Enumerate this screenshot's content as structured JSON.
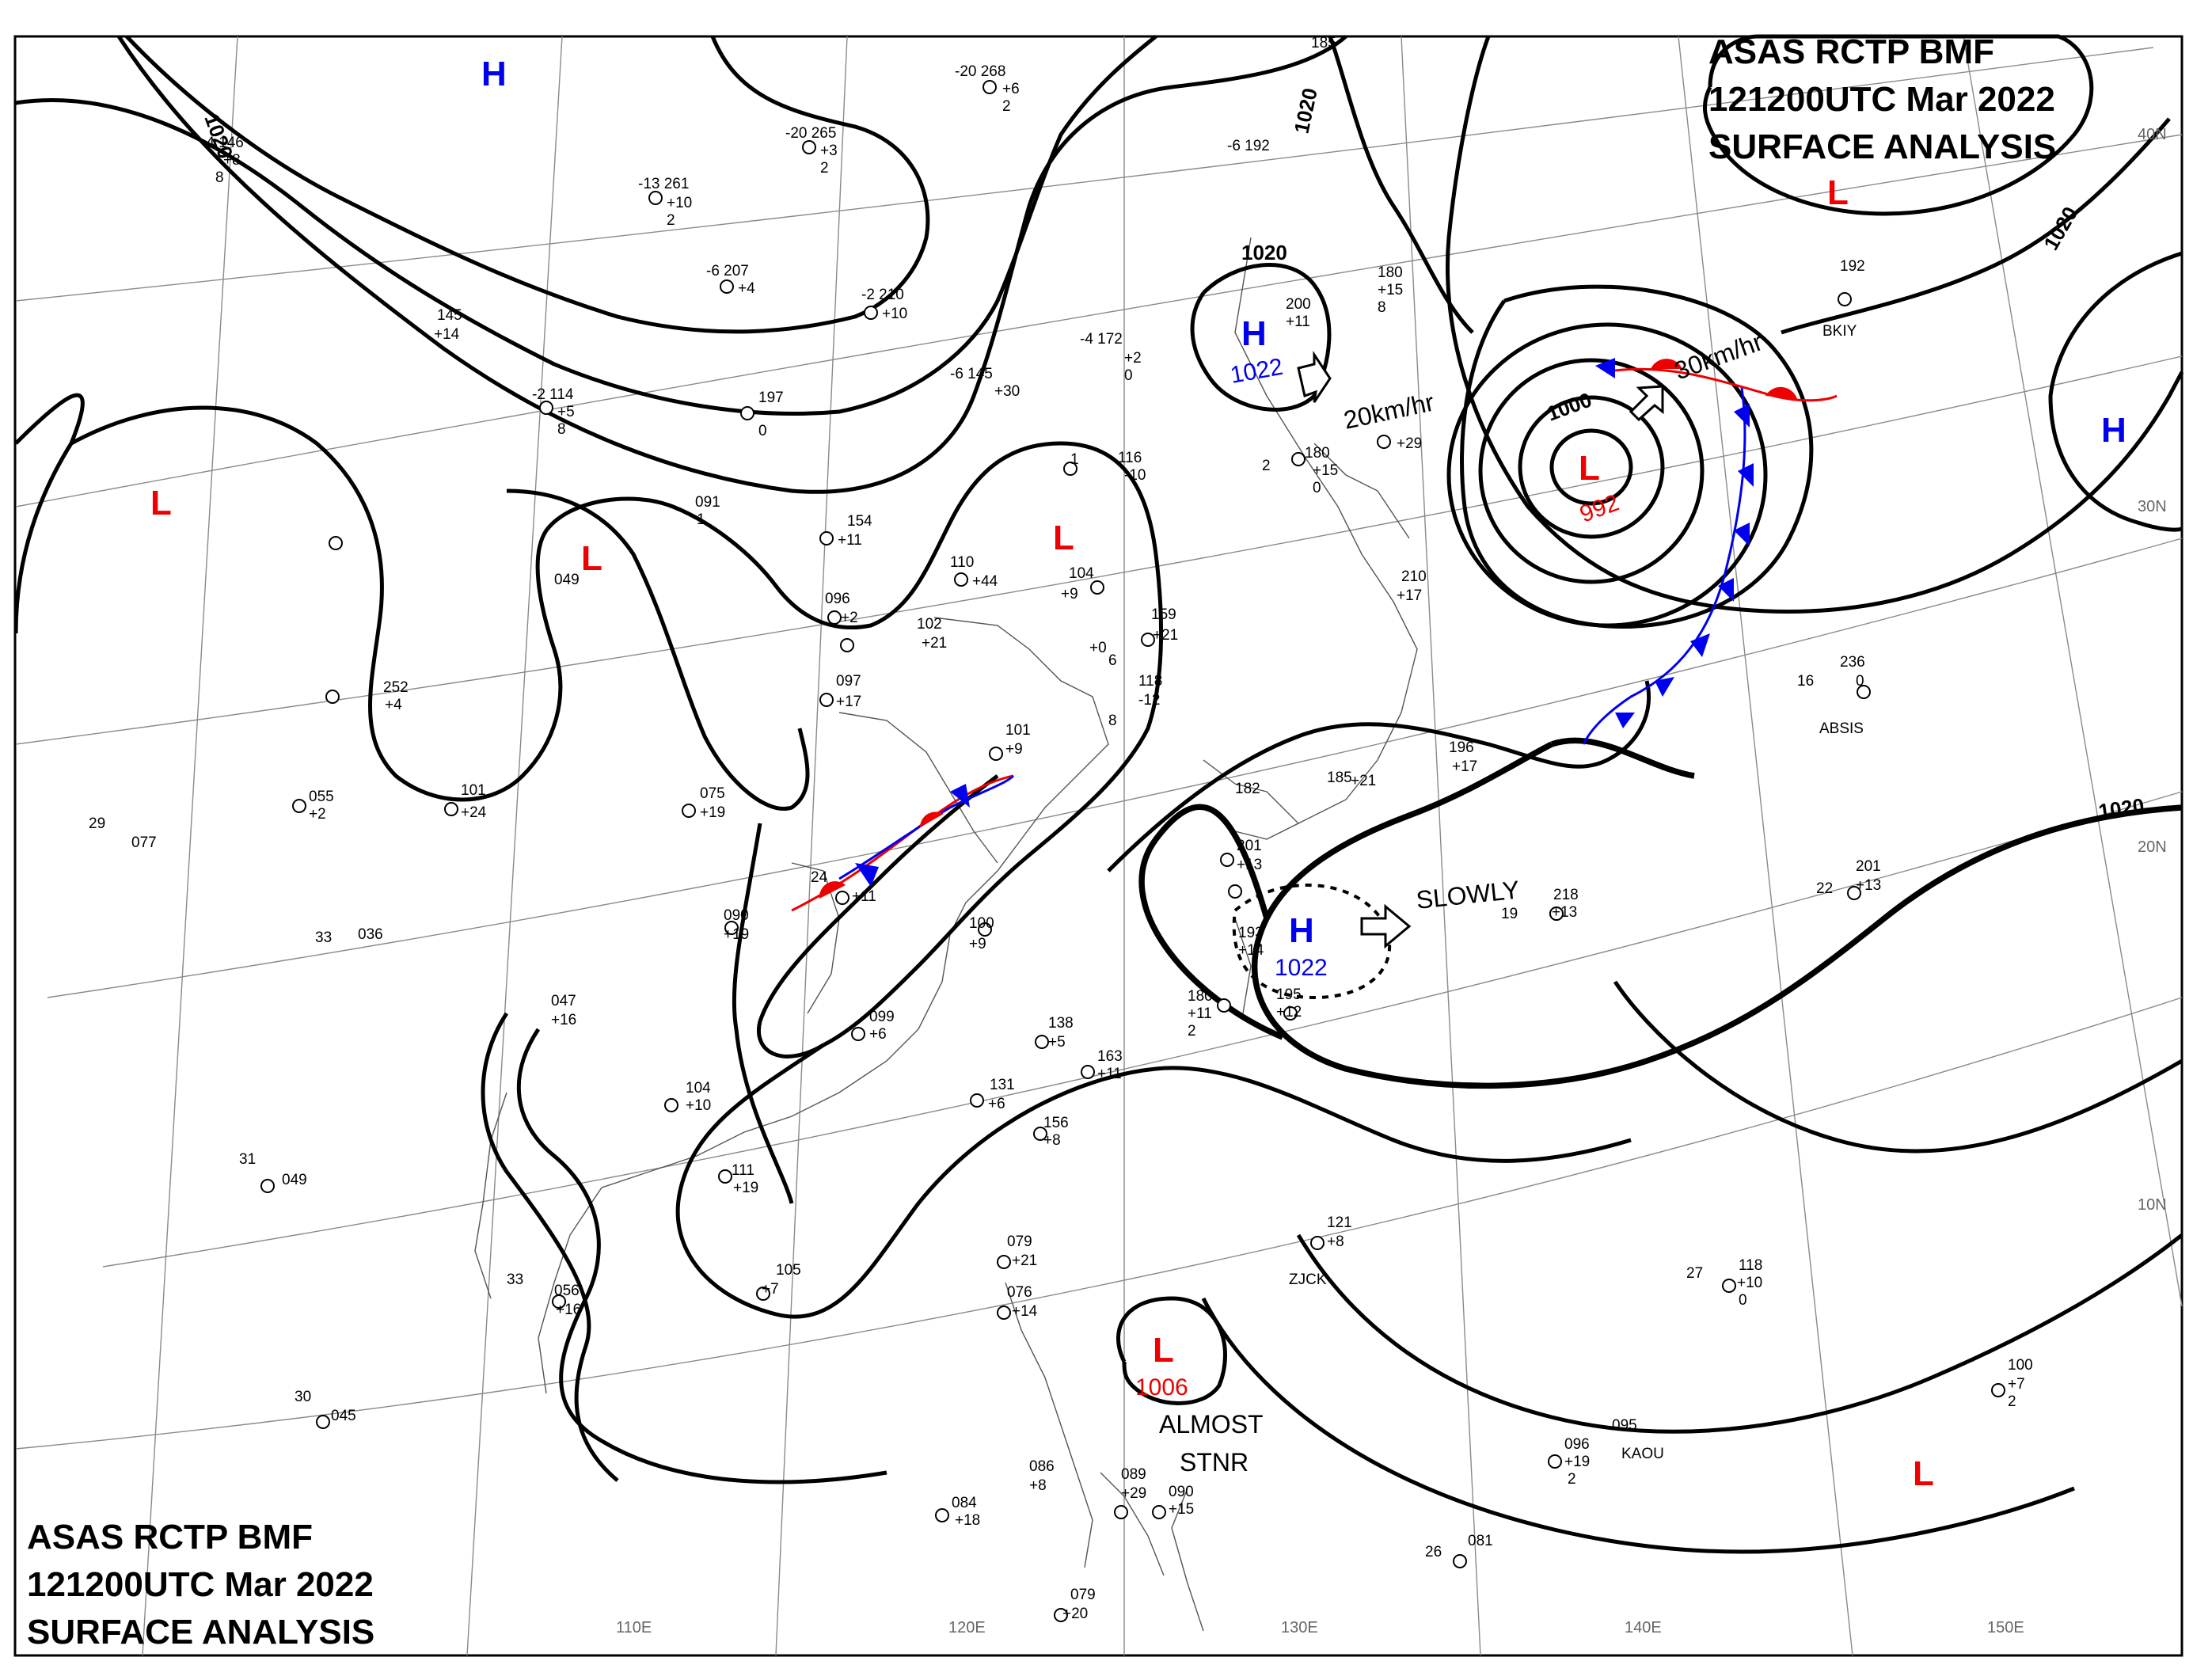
{
  "titles": {
    "top_right": [
      "ASAS    RCTP    BMF",
      "121200UTC    Mar    2022",
      "SURFACE  ANALYSIS"
    ],
    "bottom_left": [
      "ASAS     RCTP     BMF",
      "121200UTC     Mar     2022",
      "SURFACE  ANALYSIS"
    ]
  },
  "colors": {
    "high": "#0000ee",
    "low": "#ee0000",
    "cold_front": "#0000ee",
    "warm_front": "#ee0000",
    "isobar": "#000000",
    "grid": "#8a8a8a"
  },
  "longitude_labels": [
    "110E",
    "120E",
    "130E",
    "140E",
    "150E"
  ],
  "latitude_labels": [
    "40N",
    "30N",
    "20N",
    "10N"
  ],
  "isobar_labels": [
    "1020",
    "1020",
    "1020",
    "1020",
    "1020",
    "1000"
  ],
  "pressure_centers": [
    {
      "symbol": "H",
      "type": "high"
    },
    {
      "symbol": "H",
      "type": "high",
      "value": "1022"
    },
    {
      "symbol": "H",
      "type": "high",
      "value": "1022"
    },
    {
      "symbol": "H",
      "type": "high"
    },
    {
      "symbol": "L",
      "type": "low"
    },
    {
      "symbol": "L",
      "type": "low"
    },
    {
      "symbol": "L",
      "type": "low"
    },
    {
      "symbol": "L",
      "type": "low",
      "value": "992"
    },
    {
      "symbol": "L",
      "type": "low"
    },
    {
      "symbol": "L",
      "type": "low",
      "value": "1006"
    },
    {
      "symbol": "L",
      "type": "low"
    }
  ],
  "motion_labels": [
    "20km/hr",
    "30km/hr",
    "SLOWLY"
  ],
  "notes": [
    "ALMOST",
    "STNR"
  ],
  "station_labels": [
    "-20 268",
    "+6",
    "2",
    "-20 265",
    "+3",
    "2",
    "-13 261",
    "+10",
    "2",
    "-6 207",
    "+4",
    "-2 114",
    "+5",
    "8",
    "145",
    "+14",
    "-4 146",
    "+8",
    "8",
    "197",
    "0",
    "-2 210",
    "+10",
    "-4 172",
    "+2",
    "0",
    "-6 145",
    "+30",
    "-6 192",
    "185",
    "200",
    "+11",
    "180",
    "+15",
    "8",
    "180",
    "+15",
    "0",
    "2",
    "+29",
    "1",
    "116",
    "-10",
    "154",
    "+11",
    "091",
    "1",
    "110",
    "+44",
    "104",
    "+9",
    "096",
    "+2",
    "102",
    "+21",
    "097",
    "+17",
    "159",
    "+21",
    "+0",
    "118",
    "-12",
    "6",
    "8",
    "101",
    "+9",
    "049",
    "252",
    "+4",
    "101",
    "+24",
    "055",
    "+2",
    "29",
    "077",
    "075",
    "+19",
    "090",
    "+19",
    "100",
    "+9",
    "24",
    "+11",
    "33",
    "036",
    "047",
    "+16",
    "099",
    "+6",
    "138",
    "+5",
    "163",
    "+11",
    "104",
    "+10",
    "131",
    "+6",
    "156",
    "+8",
    "111",
    "+19",
    "31",
    "049",
    "105",
    "+7",
    "33",
    "056",
    "+16",
    "30",
    "045",
    "079",
    "+21",
    "076",
    "+14",
    "084",
    "+18",
    "086",
    "+8",
    "089",
    "+29",
    "090",
    "+15",
    "079",
    "+20",
    "121",
    "+8",
    "118",
    "+10",
    "0",
    "100",
    "+7",
    "2",
    "096",
    "+19",
    "2",
    "095",
    "081",
    "182",
    "201",
    "+13",
    "193",
    "+14",
    "195",
    "+12",
    "180",
    "+11",
    "2",
    "210",
    "+17",
    "196",
    "+17",
    "185",
    "+21",
    "218",
    "+13",
    "201",
    "+13",
    "236",
    "0",
    "192",
    "BKIY",
    "ABSIS",
    "ZJCK",
    "KAOU",
    "22",
    "19",
    "16",
    "27",
    "26"
  ]
}
